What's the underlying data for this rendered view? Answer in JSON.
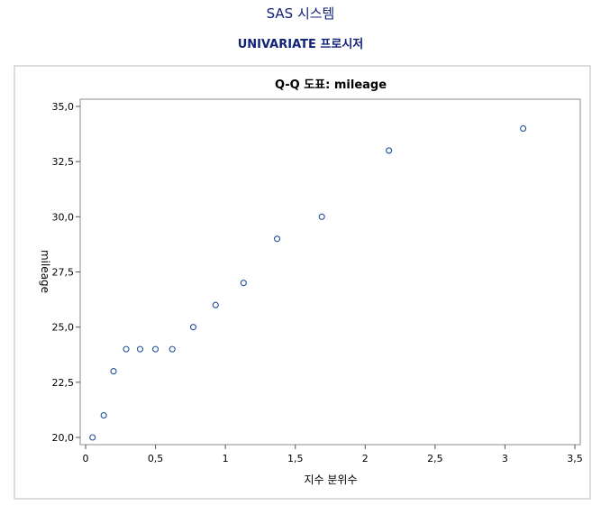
{
  "header": {
    "system_title": "SAS 시스템",
    "procedure_title": "UNIVARIATE 프로시저"
  },
  "chart_data": {
    "type": "scatter",
    "title": "Q-Q 도표: mileage",
    "xlabel": "지수 분위수",
    "ylabel": "mileage",
    "xlim": [
      0,
      3.5
    ],
    "ylim": [
      20,
      35
    ],
    "x_ticks": [
      "0",
      "0,5",
      "1",
      "1,5",
      "2",
      "2,5",
      "3",
      "3,5"
    ],
    "y_ticks": [
      "20,0",
      "22,5",
      "25,0",
      "27,5",
      "30,0",
      "32,5",
      "35,0"
    ],
    "grid": false,
    "marker": "circle",
    "marker_color": "#1f4e9c",
    "points": [
      {
        "x": 0.05,
        "y": 20
      },
      {
        "x": 0.13,
        "y": 21
      },
      {
        "x": 0.2,
        "y": 23
      },
      {
        "x": 0.29,
        "y": 24
      },
      {
        "x": 0.39,
        "y": 24
      },
      {
        "x": 0.5,
        "y": 24
      },
      {
        "x": 0.62,
        "y": 24
      },
      {
        "x": 0.77,
        "y": 25
      },
      {
        "x": 0.93,
        "y": 26
      },
      {
        "x": 1.13,
        "y": 27
      },
      {
        "x": 1.37,
        "y": 29
      },
      {
        "x": 1.69,
        "y": 30
      },
      {
        "x": 2.17,
        "y": 33
      },
      {
        "x": 3.13,
        "y": 34
      }
    ]
  }
}
